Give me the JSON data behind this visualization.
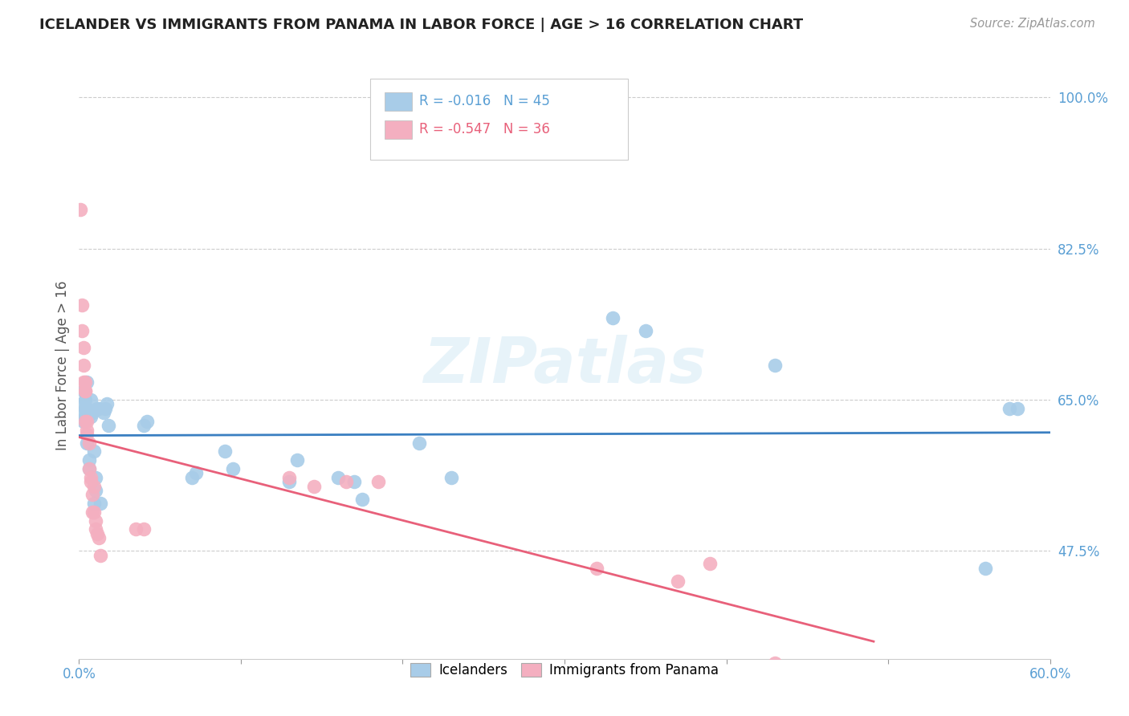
{
  "title": "ICELANDER VS IMMIGRANTS FROM PANAMA IN LABOR FORCE | AGE > 16 CORRELATION CHART",
  "source": "Source: ZipAtlas.com",
  "ylabel": "In Labor Force | Age > 16",
  "xlim": [
    0.0,
    0.6
  ],
  "ylim": [
    0.35,
    1.03
  ],
  "y_ticks": [
    1.0,
    0.825,
    0.65,
    0.475
  ],
  "y_tick_labels": [
    "100.0%",
    "82.5%",
    "65.0%",
    "47.5%"
  ],
  "x_ticks_minor": [
    0.0,
    0.1,
    0.2,
    0.3,
    0.4,
    0.5,
    0.6
  ],
  "x_tick_labels_show": [
    "0.0%",
    "60.0%"
  ],
  "x_ticks_show": [
    0.0,
    0.6
  ],
  "background_color": "#ffffff",
  "grid_color": "#cccccc",
  "blue_color": "#a8cce8",
  "pink_color": "#f4afc0",
  "blue_line_color": "#3a7fc1",
  "pink_line_color": "#e8607a",
  "r_blue": -0.016,
  "n_blue": 45,
  "r_pink": -0.547,
  "n_pink": 36,
  "watermark": "ZIPatlas",
  "legend_label_blue": "Icelanders",
  "legend_label_pink": "Immigrants from Panama",
  "blue_x": [
    0.002,
    0.002,
    0.003,
    0.003,
    0.004,
    0.004,
    0.004,
    0.005,
    0.005,
    0.005,
    0.006,
    0.006,
    0.007,
    0.007,
    0.008,
    0.009,
    0.009,
    0.01,
    0.01,
    0.011,
    0.012,
    0.013,
    0.015,
    0.016,
    0.017,
    0.018,
    0.04,
    0.042,
    0.07,
    0.072,
    0.09,
    0.095,
    0.13,
    0.135,
    0.16,
    0.17,
    0.175,
    0.21,
    0.23,
    0.33,
    0.35,
    0.43,
    0.56,
    0.575,
    0.58
  ],
  "blue_y": [
    0.635,
    0.645,
    0.625,
    0.66,
    0.64,
    0.63,
    0.65,
    0.67,
    0.64,
    0.6,
    0.57,
    0.58,
    0.63,
    0.65,
    0.635,
    0.53,
    0.59,
    0.545,
    0.56,
    0.64,
    0.64,
    0.53,
    0.635,
    0.64,
    0.645,
    0.62,
    0.62,
    0.625,
    0.56,
    0.565,
    0.59,
    0.57,
    0.555,
    0.58,
    0.56,
    0.555,
    0.535,
    0.6,
    0.56,
    0.745,
    0.73,
    0.69,
    0.455,
    0.64,
    0.64
  ],
  "pink_x": [
    0.001,
    0.002,
    0.002,
    0.003,
    0.003,
    0.003,
    0.004,
    0.004,
    0.004,
    0.004,
    0.005,
    0.005,
    0.005,
    0.006,
    0.006,
    0.007,
    0.007,
    0.008,
    0.008,
    0.009,
    0.009,
    0.01,
    0.01,
    0.011,
    0.012,
    0.013,
    0.035,
    0.04,
    0.13,
    0.145,
    0.165,
    0.185,
    0.32,
    0.37,
    0.39,
    0.43
  ],
  "pink_y": [
    0.87,
    0.76,
    0.73,
    0.71,
    0.69,
    0.67,
    0.67,
    0.66,
    0.66,
    0.625,
    0.625,
    0.615,
    0.61,
    0.6,
    0.57,
    0.56,
    0.555,
    0.54,
    0.52,
    0.55,
    0.52,
    0.51,
    0.5,
    0.495,
    0.49,
    0.47,
    0.5,
    0.5,
    0.56,
    0.55,
    0.555,
    0.555,
    0.455,
    0.44,
    0.46,
    0.345
  ]
}
